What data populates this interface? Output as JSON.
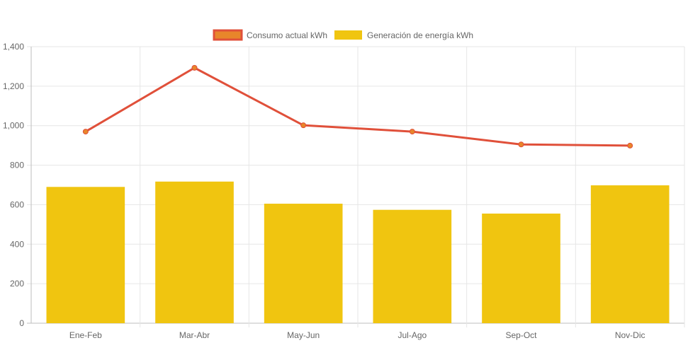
{
  "chart_data": {
    "type": "bar",
    "categories": [
      "Ene-Feb",
      "Mar-Abr",
      "May-Jun",
      "Jul-Ago",
      "Sep-Oct",
      "Nov-Dic"
    ],
    "series": [
      {
        "name": "Consumo actual kWh",
        "type": "line",
        "values": [
          970,
          1293,
          1002,
          970,
          905,
          899
        ],
        "color": "#e0503a",
        "point_color": "#e8862a"
      },
      {
        "name": "Generación de energía kWh",
        "type": "bar",
        "values": [
          690,
          717,
          605,
          574,
          555,
          698
        ],
        "color": "#f0c510"
      }
    ],
    "y_ticks": [
      "0",
      "200",
      "400",
      "600",
      "800",
      "1,000",
      "1,200",
      "1,400"
    ],
    "ylim": [
      0,
      1400
    ],
    "grid": true,
    "legend_position": "top"
  }
}
